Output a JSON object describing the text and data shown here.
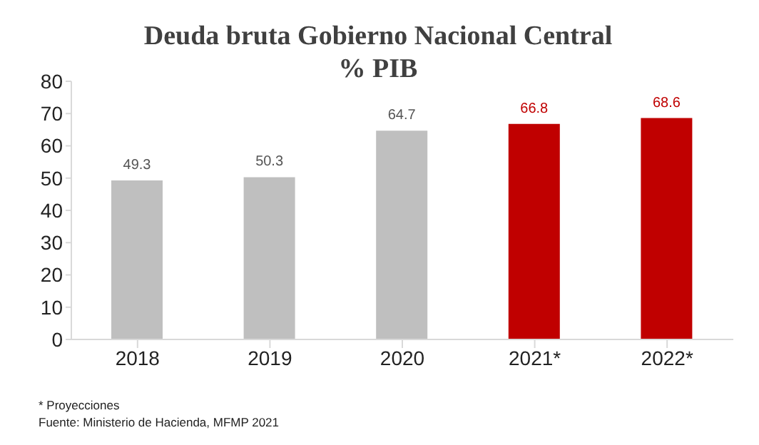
{
  "chart_data": {
    "type": "bar",
    "title": "Deuda bruta Gobierno Nacional Central",
    "subtitle": "% PIB",
    "categories": [
      "2018",
      "2019",
      "2020",
      "2021*",
      "2022*"
    ],
    "values": [
      49.3,
      50.3,
      64.7,
      66.8,
      68.6
    ],
    "colors": [
      "#bfbfbf",
      "#bfbfbf",
      "#bfbfbf",
      "#c00000",
      "#c00000"
    ],
    "ylim": [
      0,
      80
    ],
    "yticks": [
      0,
      10,
      20,
      30,
      40,
      50,
      60,
      70,
      80
    ],
    "grid": false,
    "data_labels": true,
    "annotations": [
      "* Proyecciones",
      "Fuente: Ministerio de Hacienda, MFMP 2021"
    ]
  }
}
